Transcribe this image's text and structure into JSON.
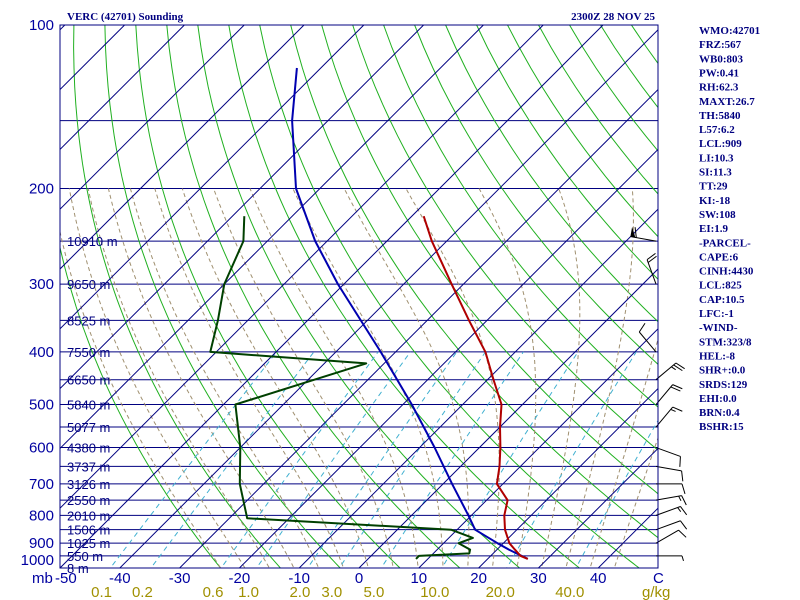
{
  "header": {
    "station": "VERC (42701) Sounding",
    "time": "2300Z 28 NOV 25"
  },
  "indices": [
    "WMO:42701",
    "FRZ:567",
    "WB0:803",
    "PW:0.41",
    "RH:62.3",
    "MAXT:26.7",
    "TH:5840",
    "L57:6.2",
    "LCL:909",
    "LI:10.3",
    "SI:11.3",
    "TT:29",
    "KI:-18",
    "SW:108",
    "EI:1.9",
    "-PARCEL-",
    "CAPE:6",
    "CINH:4430",
    "LCL:825",
    "CAP:10.5",
    "LFC:-1",
    "-WIND-",
    "STM:323/8",
    "HEL:-8",
    "SHR+:0.0",
    "SRDS:129",
    "EHI:0.0",
    "BRN:0.4",
    "BSHR:15"
  ],
  "colors": {
    "frame": "#000080",
    "isobar": "#000080",
    "isotherm": "#000080",
    "dry_adiabat": "#20b020",
    "moist_adiabat": "#a09070",
    "mixing_ratio": "#40b0d0",
    "temperature": "#b00000",
    "dewpoint": "#004000",
    "parcel": "#0000b0",
    "wind_barb": "#000000"
  },
  "chart_data": {
    "type": "skew-t",
    "title": "VERC (42701) Sounding",
    "subtitle": "2300Z 28 NOV 25",
    "pressure_ticks": [
      100,
      200,
      300,
      400,
      500,
      600,
      700,
      800,
      900,
      1000
    ],
    "pressure_axis_label": "mb",
    "temperature_ticks": [
      "-50",
      "-40",
      "-30",
      "-20",
      "-10",
      "0",
      "10",
      "20",
      "30",
      "40"
    ],
    "temperature_axis_end_label": "C",
    "mixing_ratio_ticks": [
      "0.1",
      "0.2",
      "0.6",
      "1.0",
      "2.0",
      "3.0",
      "5.0",
      "10.0",
      "20.0",
      "40.0"
    ],
    "mixing_ratio_unit": "g/kg",
    "plim": [
      1000,
      100
    ],
    "tlim_at_1000mb": [
      -50,
      50
    ],
    "height_labels": [
      {
        "p": 250,
        "label": "10910 m"
      },
      {
        "p": 300,
        "label": "9650 m"
      },
      {
        "p": 350,
        "label": "8525 m"
      },
      {
        "p": 400,
        "label": "7550 m"
      },
      {
        "p": 450,
        "label": "6650 m"
      },
      {
        "p": 500,
        "label": "5840 m"
      },
      {
        "p": 550,
        "label": "5077 m"
      },
      {
        "p": 600,
        "label": "4380 m"
      },
      {
        "p": 650,
        "label": "3737 m"
      },
      {
        "p": 700,
        "label": "3126 m"
      },
      {
        "p": 750,
        "label": "2550 m"
      },
      {
        "p": 800,
        "label": "2010 m"
      },
      {
        "p": 850,
        "label": "1506 m"
      },
      {
        "p": 900,
        "label": "1025 m"
      },
      {
        "p": 950,
        "label": "550 m"
      },
      {
        "p": 1000,
        "label": "8 m"
      }
    ],
    "temperature_profile": [
      {
        "p": 962,
        "t": 26.7
      },
      {
        "p": 950,
        "t": 25.0
      },
      {
        "p": 925,
        "t": 23.0
      },
      {
        "p": 900,
        "t": 21.0
      },
      {
        "p": 850,
        "t": 18.0
      },
      {
        "p": 800,
        "t": 15.5
      },
      {
        "p": 750,
        "t": 13.5
      },
      {
        "p": 700,
        "t": 9.0
      },
      {
        "p": 650,
        "t": 6.5
      },
      {
        "p": 600,
        "t": 3.5
      },
      {
        "p": 550,
        "t": 0.0
      },
      {
        "p": 500,
        "t": -3.5
      },
      {
        "p": 450,
        "t": -9.0
      },
      {
        "p": 400,
        "t": -15.0
      },
      {
        "p": 350,
        "t": -23.0
      },
      {
        "p": 300,
        "t": -32.0
      },
      {
        "p": 275,
        "t": -37.0
      },
      {
        "p": 250,
        "t": -42.5
      },
      {
        "p": 225,
        "t": -48.0
      }
    ],
    "dewpoint_profile": [
      {
        "p": 962,
        "t": 8.0
      },
      {
        "p": 950,
        "t": 8.0
      },
      {
        "p": 940,
        "t": 16.0
      },
      {
        "p": 925,
        "t": 15.5
      },
      {
        "p": 900,
        "t": 12.5
      },
      {
        "p": 880,
        "t": 14.0
      },
      {
        "p": 850,
        "t": 9.0
      },
      {
        "p": 810,
        "t": -27.0
      },
      {
        "p": 700,
        "t": -34.0
      },
      {
        "p": 600,
        "t": -40.0
      },
      {
        "p": 500,
        "t": -48.0
      },
      {
        "p": 420,
        "t": -33.0
      },
      {
        "p": 400,
        "t": -61.0
      },
      {
        "p": 350,
        "t": -65.0
      },
      {
        "p": 300,
        "t": -70.0
      },
      {
        "p": 250,
        "t": -74.0
      },
      {
        "p": 225,
        "t": -78.0
      }
    ],
    "parcel_profile": [
      {
        "p": 962,
        "t": 26.7
      },
      {
        "p": 925,
        "t": 22.0
      },
      {
        "p": 900,
        "t": 19.0
      },
      {
        "p": 850,
        "t": 13.0
      },
      {
        "p": 800,
        "t": 9.5
      },
      {
        "p": 700,
        "t": 1.5
      },
      {
        "p": 600,
        "t": -7.5
      },
      {
        "p": 500,
        "t": -18.5
      },
      {
        "p": 400,
        "t": -32.5
      },
      {
        "p": 300,
        "t": -51.0
      },
      {
        "p": 250,
        "t": -62.0
      },
      {
        "p": 200,
        "t": -74.0
      },
      {
        "p": 150,
        "t": -86.0
      },
      {
        "p": 120,
        "t": -94.0
      }
    ],
    "wind_barbs": [
      {
        "p": 950,
        "dir": 90,
        "spd": 5
      },
      {
        "p": 900,
        "dir": 60,
        "spd": 10
      },
      {
        "p": 850,
        "dir": 70,
        "spd": 10
      },
      {
        "p": 800,
        "dir": 70,
        "spd": 15
      },
      {
        "p": 750,
        "dir": 80,
        "spd": 15
      },
      {
        "p": 700,
        "dir": 90,
        "spd": 10
      },
      {
        "p": 650,
        "dir": 100,
        "spd": 10
      },
      {
        "p": 600,
        "dir": 110,
        "spd": 10
      },
      {
        "p": 550,
        "dir": 40,
        "spd": 15
      },
      {
        "p": 500,
        "dir": 40,
        "spd": 20
      },
      {
        "p": 450,
        "dir": 50,
        "spd": 25
      },
      {
        "p": 400,
        "dir": 320,
        "spd": 10
      },
      {
        "p": 300,
        "dir": 340,
        "spd": 20
      },
      {
        "p": 250,
        "dir": 280,
        "spd": 60
      }
    ],
    "grid": true
  }
}
